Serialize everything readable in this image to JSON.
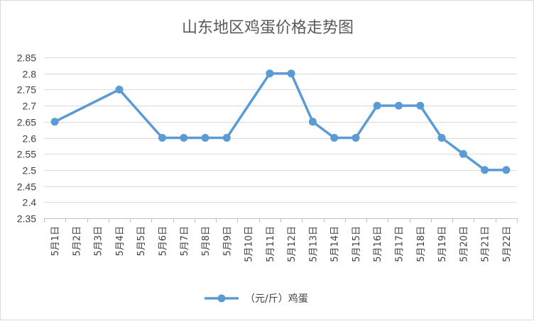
{
  "chart_data": {
    "type": "line",
    "title": "山东地区鸡蛋价格走势图",
    "xlabel": "",
    "ylabel": "",
    "ylim": [
      2.35,
      2.85
    ],
    "ytick_step": 0.05,
    "yticks": [
      "2.35",
      "2.4",
      "2.45",
      "2.5",
      "2.55",
      "2.6",
      "2.65",
      "2.7",
      "2.75",
      "2.8",
      "2.85"
    ],
    "grid": true,
    "legend_position": "bottom",
    "categories": [
      "5月1日",
      "5月2日",
      "5月3日",
      "5月4日",
      "5月5日",
      "5月6日",
      "5月7日",
      "5月8日",
      "5月9日",
      "5月10日",
      "5月11日",
      "5月12日",
      "5月13日",
      "5月14日",
      "5月15日",
      "5月16日",
      "5月17日",
      "5月18日",
      "5月19日",
      "5月20日",
      "5月21日",
      "5月22日"
    ],
    "series": [
      {
        "name": "（元/斤）鸡蛋",
        "color": "#5b9bd5",
        "values": [
          2.65,
          null,
          null,
          2.75,
          null,
          2.6,
          2.6,
          2.6,
          2.6,
          null,
          2.8,
          2.8,
          2.65,
          2.6,
          2.6,
          2.7,
          2.7,
          2.7,
          2.6,
          2.55,
          2.5,
          2.5
        ]
      }
    ]
  }
}
